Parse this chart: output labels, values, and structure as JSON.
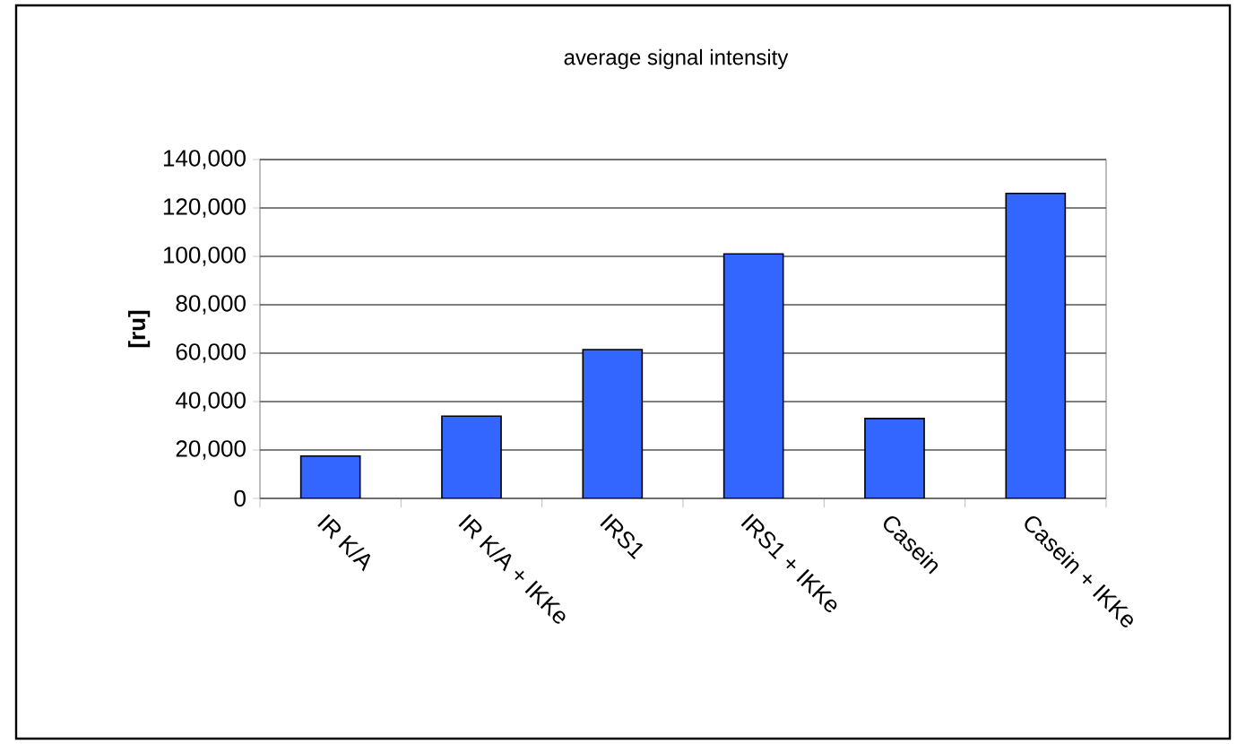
{
  "chart_data": {
    "type": "bar",
    "title": "average signal intensity",
    "ylabel": "[ru]",
    "categories": [
      "IR K/A",
      "IR K/A + IKKe",
      "IRS1",
      "IRS1 + IKKe",
      "Casein",
      "Casein + IKKe"
    ],
    "values": [
      17500,
      34000,
      61500,
      101000,
      33000,
      126000
    ],
    "color": "#3366ff",
    "ylim": [
      0,
      140000
    ],
    "yticks": [
      {
        "value": 0,
        "label": "0"
      },
      {
        "value": 20000,
        "label": "20,000"
      },
      {
        "value": 40000,
        "label": "40,000"
      },
      {
        "value": 60000,
        "label": "60,000"
      },
      {
        "value": 80000,
        "label": "80,000"
      },
      {
        "value": 100000,
        "label": "100,000"
      },
      {
        "value": 120000,
        "label": "120,000"
      },
      {
        "value": 140000,
        "label": "140,000"
      }
    ],
    "grid": "y"
  }
}
